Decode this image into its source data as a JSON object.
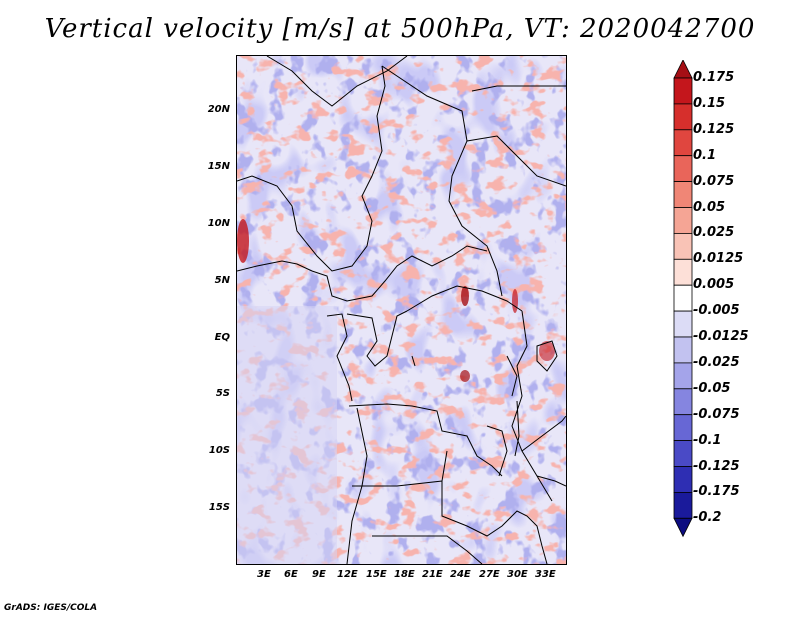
{
  "title": "Vertical velocity [m/s] at 500hPa, VT: 2020042700",
  "credit": "GrADS: IGES/COLA",
  "latitude_labels": [
    "20N",
    "15N",
    "10N",
    "5N",
    "EQ",
    "5S",
    "10S",
    "15S"
  ],
  "longitude_labels": [
    "3E",
    "6E",
    "9E",
    "12E",
    "15E",
    "18E",
    "21E",
    "24E",
    "27E",
    "30E",
    "33E"
  ],
  "colorbar": {
    "labels": [
      "0.175",
      "0.15",
      "0.125",
      "0.1",
      "0.075",
      "0.05",
      "0.025",
      "0.0125",
      "0.005",
      "-0.005",
      "-0.0125",
      "-0.025",
      "-0.05",
      "-0.075",
      "-0.1",
      "-0.125",
      "-0.175",
      "-0.2"
    ],
    "colors": [
      "#a50f15",
      "#c4161c",
      "#d62f2c",
      "#e0463f",
      "#e9655a",
      "#f08676",
      "#f5a595",
      "#f9c3b6",
      "#fde0d8",
      "#ffffff",
      "#dcdcf6",
      "#c2c2f0",
      "#a4a4ea",
      "#8585e0",
      "#6767d5",
      "#4a4ac6",
      "#2e2eb3",
      "#1a1a9b",
      "#0c0c80"
    ]
  },
  "map_colors": {
    "background": "#e6e4f8",
    "positive": "#e6645a",
    "negative": "#7070d8",
    "border": "#000000"
  }
}
